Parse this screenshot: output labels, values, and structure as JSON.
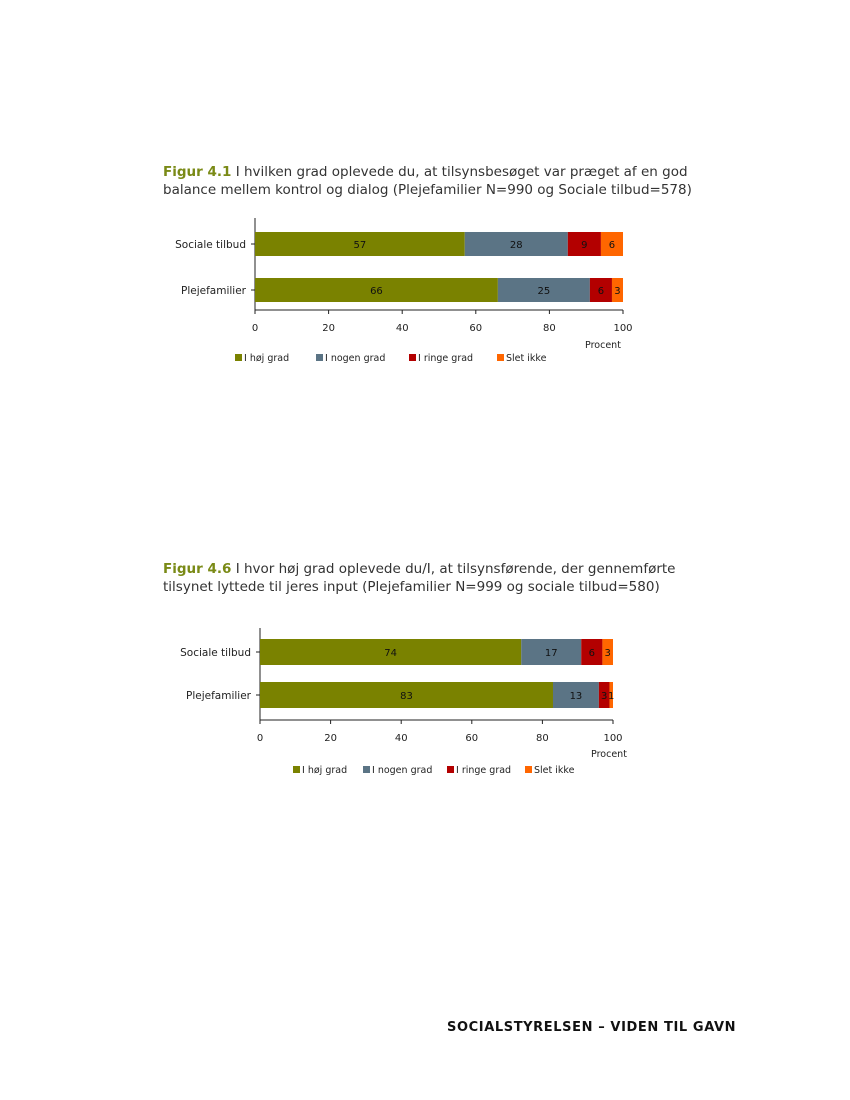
{
  "colors": {
    "I høj grad": "#7a8200",
    "I nogen grad": "#5b7485",
    "I ringe grad": "#b30000",
    "Slet ikke": "#ff6600"
  },
  "footer": "SOCIALSTYRELSEN – VIDEN TIL GAVN",
  "chart_data": [
    {
      "type": "bar",
      "orientation": "horizontal",
      "stacked": true,
      "figure_label": "Figur 4.1",
      "title": "I hvilken grad oplevede du, at tilsynsbesøget var præget af en god balance mellem kontrol og dialog (Plejefamilier N=990 og Sociale tilbud=578)",
      "categories": [
        "Sociale tilbud",
        "Plejefamilier"
      ],
      "series": [
        {
          "name": "I høj grad",
          "values": [
            57,
            66
          ]
        },
        {
          "name": "I nogen grad",
          "values": [
            28,
            25
          ]
        },
        {
          "name": "I ringe grad",
          "values": [
            9,
            6
          ]
        },
        {
          "name": "Slet ikke",
          "values": [
            6,
            3
          ]
        }
      ],
      "xlabel": "Procent",
      "xlim": [
        0,
        100
      ],
      "xticks": [
        0,
        20,
        40,
        60,
        80,
        100
      ],
      "grid": false,
      "legend": "bottom"
    },
    {
      "type": "bar",
      "orientation": "horizontal",
      "stacked": true,
      "figure_label": "Figur 4.6",
      "title": "I hvor høj grad oplevede du/I, at tilsynsførende, der gennemførte tilsynet lyttede til jeres input (Plejefamilier N=999 og sociale tilbud=580)",
      "categories": [
        "Sociale tilbud",
        "Plejefamilier"
      ],
      "series": [
        {
          "name": "I høj grad",
          "values": [
            74,
            83
          ]
        },
        {
          "name": "I nogen grad",
          "values": [
            17,
            13
          ]
        },
        {
          "name": "I ringe grad",
          "values": [
            6,
            3
          ]
        },
        {
          "name": "Slet ikke",
          "values": [
            3,
            1
          ]
        }
      ],
      "xlabel": "Procent",
      "xlim": [
        0,
        100
      ],
      "xticks": [
        0,
        20,
        40,
        60,
        80,
        100
      ],
      "grid": false,
      "legend": "bottom"
    }
  ]
}
